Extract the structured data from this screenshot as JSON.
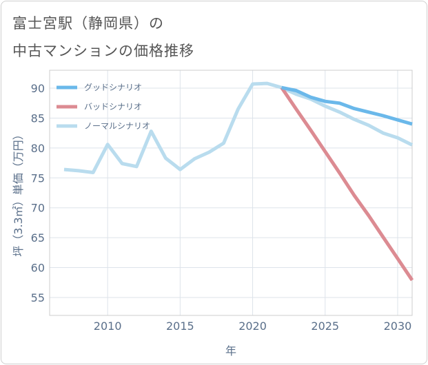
{
  "title_line1": "富士宮駅（静岡県）の",
  "title_line2": "中古マンションの価格推移",
  "chart_data": {
    "type": "line",
    "xlabel": "年",
    "ylabel": "坪（3.3㎡）単価（万円）",
    "xlim": [
      2006,
      2031
    ],
    "ylim": [
      52,
      93
    ],
    "x_ticks": [
      2010,
      2015,
      2020,
      2025,
      2030
    ],
    "y_ticks": [
      55,
      60,
      65,
      70,
      75,
      80,
      85,
      90
    ],
    "grid": true,
    "legend_position": "top-left",
    "series": [
      {
        "name": "グッドシナリオ",
        "color": "#6ab8ea",
        "x": [
          2022,
          2023,
          2024,
          2025,
          2026,
          2027,
          2028,
          2029,
          2030,
          2031
        ],
        "y": [
          90.1,
          89.6,
          88.5,
          87.8,
          87.5,
          86.6,
          86.0,
          85.4,
          84.7,
          84.0
        ]
      },
      {
        "name": "バッドシナリオ",
        "color": "#dc8b92",
        "x": [
          2022,
          2023,
          2024,
          2025,
          2026,
          2027,
          2028,
          2029,
          2030,
          2031
        ],
        "y": [
          90.1,
          86.5,
          83.0,
          79.4,
          75.8,
          72.1,
          68.7,
          65.1,
          61.5,
          57.9
        ]
      },
      {
        "name": "ノーマルシナリオ",
        "color": "#b9dcee",
        "x": [
          2007,
          2008,
          2009,
          2010,
          2011,
          2012,
          2013,
          2014,
          2015,
          2016,
          2017,
          2018,
          2019,
          2020,
          2021,
          2022,
          2023,
          2024,
          2025,
          2026,
          2027,
          2028,
          2029,
          2030,
          2031
        ],
        "y": [
          76.4,
          76.2,
          75.9,
          80.6,
          77.4,
          76.9,
          82.8,
          78.3,
          76.4,
          78.2,
          79.3,
          80.8,
          86.5,
          90.7,
          90.8,
          90.1,
          89.0,
          88.2,
          87.0,
          86.0,
          84.8,
          83.8,
          82.5,
          81.7,
          80.5
        ]
      }
    ]
  }
}
